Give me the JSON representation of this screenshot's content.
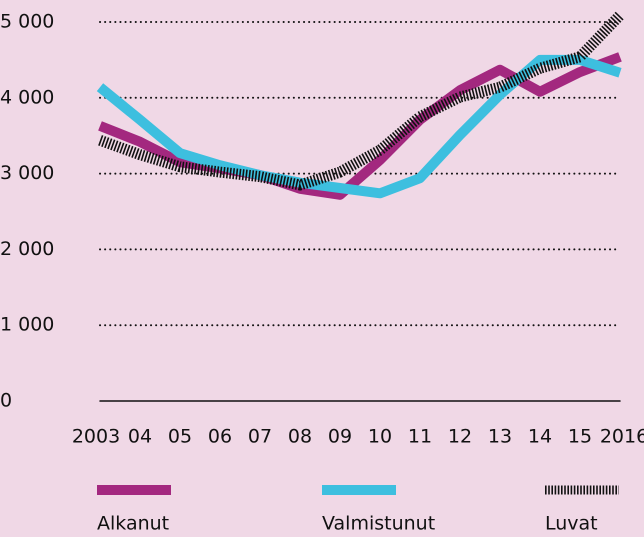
{
  "chart_data": {
    "type": "line",
    "categories": [
      "2003",
      "04",
      "05",
      "06",
      "07",
      "08",
      "09",
      "10",
      "11",
      "12",
      "13",
      "14",
      "15",
      "2016"
    ],
    "series": [
      {
        "name": "Alkanut",
        "color": "#a3287f",
        "values": [
          3630,
          3420,
          3150,
          3070,
          2980,
          2800,
          2720,
          3180,
          3710,
          4100,
          4370,
          4080,
          4340,
          4540
        ]
      },
      {
        "name": "Valmistunut",
        "color": "#3dbfdf",
        "values": [
          4140,
          3710,
          3270,
          3110,
          2980,
          2880,
          2810,
          2740,
          2940,
          3510,
          4040,
          4500,
          4500,
          4330
        ]
      },
      {
        "name": "Luvat",
        "color": "#111111",
        "values": [
          3440,
          3250,
          3090,
          3020,
          2960,
          2850,
          3020,
          3310,
          3750,
          4010,
          4140,
          4390,
          4540,
          5090
        ]
      }
    ],
    "ylim": [
      0,
      5000
    ],
    "yticks": [
      0,
      {
        "value": 1000,
        "label": "1 000"
      },
      {
        "value": 2000,
        "label": "2 000"
      },
      {
        "value": 3000,
        "label": "3 000"
      },
      {
        "value": 4000,
        "label": "4 000"
      },
      {
        "value": 5000,
        "label": "5 000"
      }
    ],
    "grid": true
  }
}
